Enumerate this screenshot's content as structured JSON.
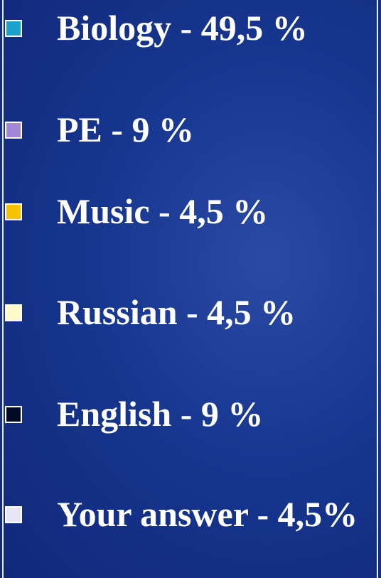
{
  "items": [
    {
      "label": "Biology - 49,5 %",
      "color": "#1ba3cc"
    },
    {
      "label": "PE - 9 %",
      "color": "#a486d8"
    },
    {
      "label": "Music - 4,5 %",
      "color": "#f7c300"
    },
    {
      "label": "Russian - 4,5 %",
      "color": "#fffbc9"
    },
    {
      "label": "English - 9 %",
      "color": "#020a24"
    },
    {
      "label": "Your answer - 4,5%",
      "color": "#e6e6f6"
    }
  ]
}
